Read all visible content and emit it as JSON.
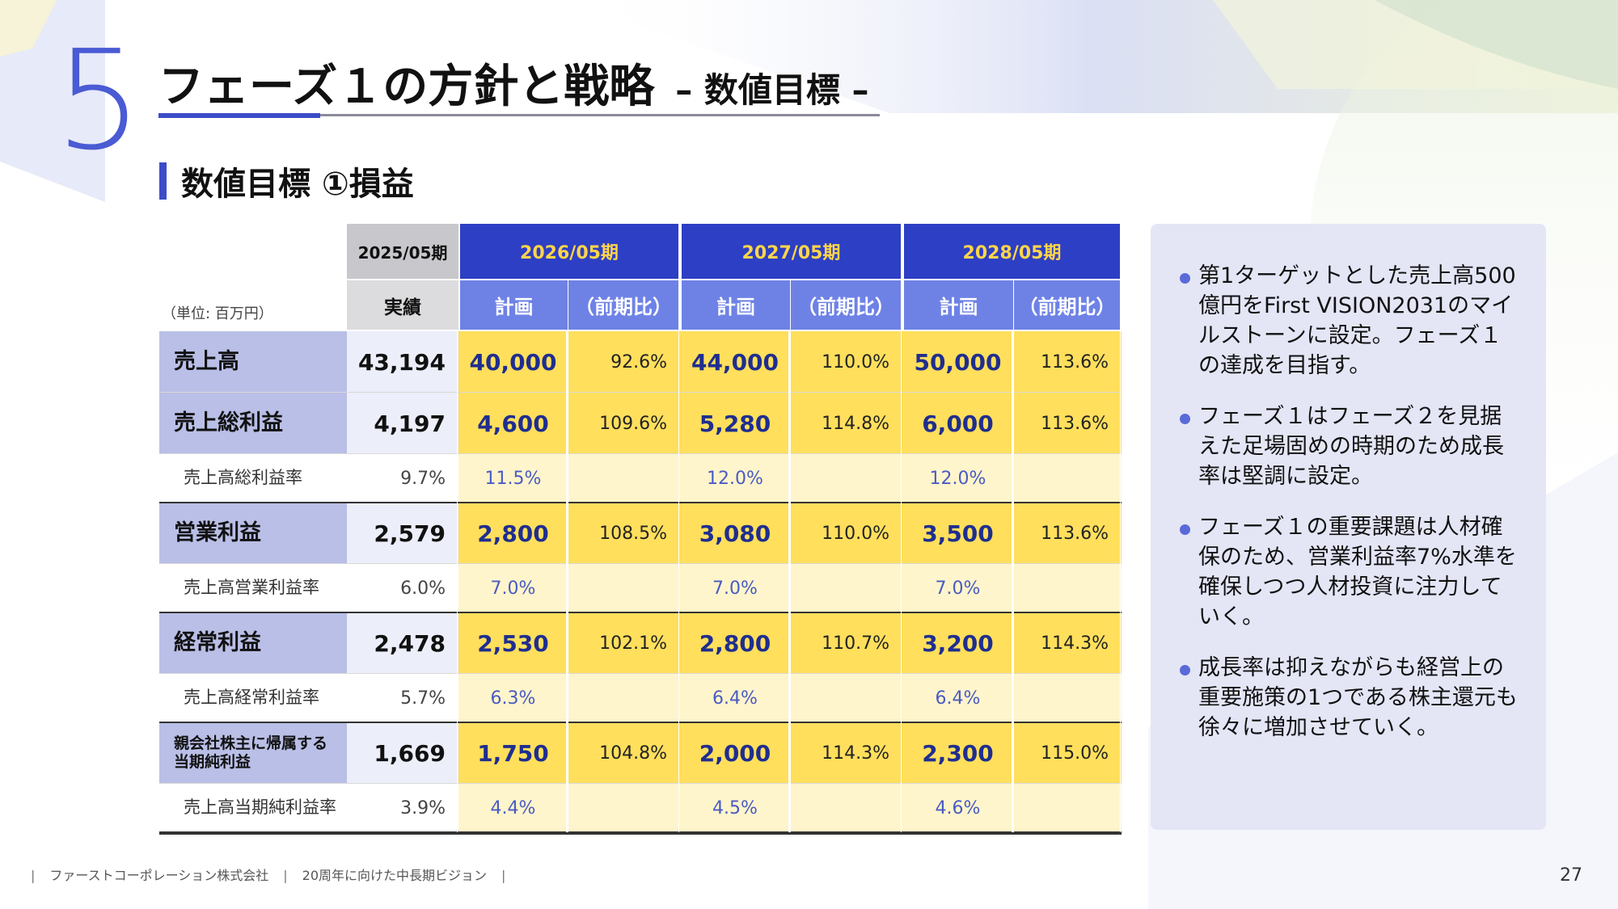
{
  "header": {
    "section_number": "5",
    "title": "フェーズ１の方針と戦略",
    "subtitle": "– 数値目標 –"
  },
  "section": {
    "heading": "数値目標 ①損益"
  },
  "table": {
    "unit": "（単位: 百万円）",
    "actual_period": "2025/05期",
    "actual_label": "実績",
    "periods": [
      "2026/05期",
      "2027/05期",
      "2028/05期"
    ],
    "plan_label": "計画",
    "ratio_label": "（前期比）",
    "rows": [
      {
        "label": "売上高",
        "actual": "43,194",
        "values": [
          "40,000",
          "92.6%",
          "44,000",
          "110.0%",
          "50,000",
          "113.6%"
        ]
      },
      {
        "label": "売上総利益",
        "actual": "4,197",
        "values": [
          "4,600",
          "109.6%",
          "5,280",
          "114.8%",
          "6,000",
          "113.6%"
        ]
      },
      {
        "label": "売上高総利益率",
        "actual": "9.7%",
        "values": [
          "11.5%",
          "",
          "12.0%",
          "",
          "12.0%",
          ""
        ]
      },
      {
        "label": "営業利益",
        "actual": "2,579",
        "values": [
          "2,800",
          "108.5%",
          "3,080",
          "110.0%",
          "3,500",
          "113.6%"
        ]
      },
      {
        "label": "売上高営業利益率",
        "actual": "6.0%",
        "values": [
          "7.0%",
          "",
          "7.0%",
          "",
          "7.0%",
          ""
        ]
      },
      {
        "label": "経常利益",
        "actual": "2,478",
        "values": [
          "2,530",
          "102.1%",
          "2,800",
          "110.7%",
          "3,200",
          "114.3%"
        ]
      },
      {
        "label": "売上高経常利益率",
        "actual": "5.7%",
        "values": [
          "6.3%",
          "",
          "6.4%",
          "",
          "6.4%",
          ""
        ]
      },
      {
        "label": "親会社株主に帰属する\n当期純利益",
        "actual": "1,669",
        "values": [
          "1,750",
          "104.8%",
          "2,000",
          "114.3%",
          "2,300",
          "115.0%"
        ]
      },
      {
        "label": "売上高当期純利益率",
        "actual": "3.9%",
        "values": [
          "4.4%",
          "",
          "4.5%",
          "",
          "4.6%",
          ""
        ]
      }
    ]
  },
  "side_panel": {
    "bullets": [
      "第1ターゲットとした売上高500億円をFirst VISION2031のマイルストーンに設定。フェーズ１の達成を目指す。",
      "フェーズ１はフェーズ２を見据えた足場固めの時期のため成長率は堅調に設定。",
      "フェーズ１の重要課題は人材確保のため、営業利益率7%水準を確保しつつ人材投資に注力していく。",
      "成長率は抑えながらも経営上の重要施策の1つである株主還元も徐々に増加させていく。"
    ]
  },
  "footer": {
    "company": "ファーストコーポレーション株式会社",
    "vision": "20周年に向けた中長期ビジョン",
    "page_number": "27"
  },
  "colors": {
    "accent_blue": "#3b4cc8",
    "header_dark": "#2d3fc4",
    "header_mid": "#6e82e6",
    "plan_yellow": "#ffdf5c",
    "plan_yellow_light": "#fff5cc",
    "label_lavender": "#b9bfe6",
    "panel_bg": "#e4e6f6"
  }
}
